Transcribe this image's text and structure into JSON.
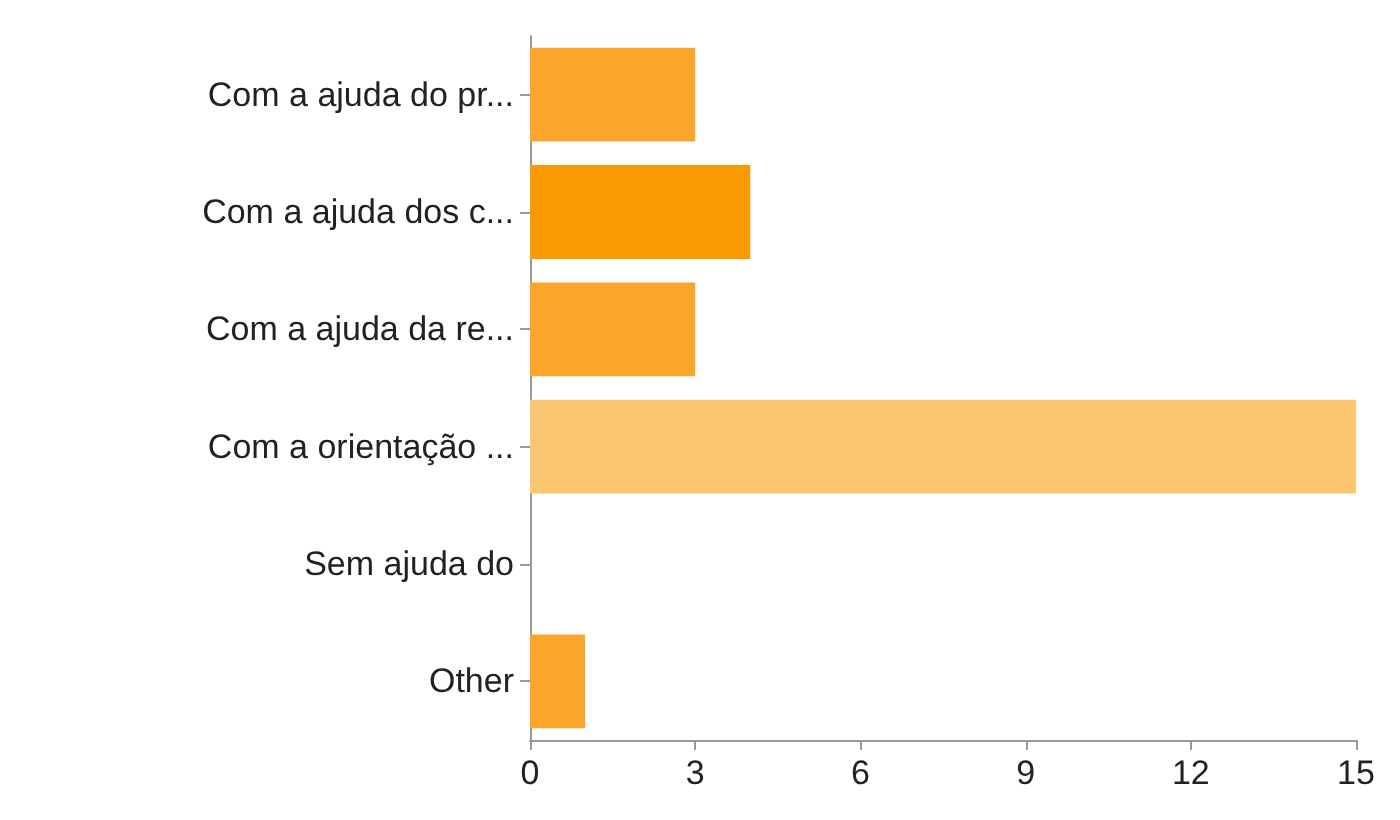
{
  "chart_data": {
    "type": "bar",
    "orientation": "horizontal",
    "categories": [
      "Com a ajuda do pr...",
      "Com a ajuda dos c...",
      "Com a ajuda da re...",
      "Com a orientação ...",
      "Sem ajuda do",
      "Other"
    ],
    "values": [
      3,
      4,
      3,
      15,
      0,
      1
    ],
    "colors": [
      "#fba52a",
      "#fb9900",
      "#fba52a",
      "#fdc670",
      "#fba52a",
      "#fba52a"
    ],
    "xlim": [
      0,
      15
    ],
    "xticks": [
      0,
      3,
      6,
      9,
      12,
      15
    ],
    "grid": false
  }
}
